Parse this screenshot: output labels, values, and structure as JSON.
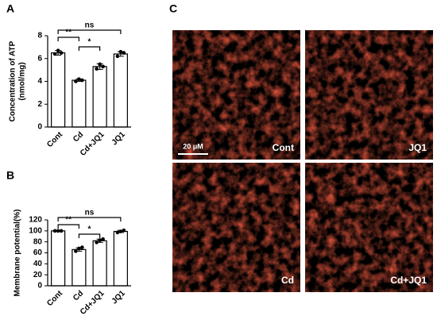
{
  "chart_data": [
    {
      "type": "bar",
      "panel_label": "A",
      "ylabel": [
        "Concentration of ATP",
        "(nmol/mg)"
      ],
      "categories": [
        "Cont",
        "Cd",
        "Cd+JQ1",
        "JQ1"
      ],
      "values": [
        6.5,
        4.1,
        5.3,
        6.4
      ],
      "errors": [
        0.2,
        0.1,
        0.25,
        0.2
      ],
      "points": [
        [
          6.4,
          6.7,
          6.5
        ],
        [
          4.0,
          4.2,
          4.1
        ],
        [
          5.1,
          5.5,
          5.3
        ],
        [
          6.2,
          6.6,
          6.5
        ]
      ],
      "color": "#000000",
      "ylim": [
        0,
        8
      ],
      "yticks": [
        0,
        2,
        4,
        6,
        8
      ],
      "annotations": [
        {
          "pair": [
            "Cont",
            "JQ1"
          ],
          "label": "ns"
        },
        {
          "pair": [
            "Cont",
            "Cd"
          ],
          "label": "**"
        },
        {
          "pair": [
            "Cd",
            "Cd+JQ1"
          ],
          "label": "*"
        }
      ]
    },
    {
      "type": "bar",
      "panel_label": "B",
      "ylabel": [
        "Membrane potential(%)"
      ],
      "categories": [
        "Cont",
        "Cd",
        "Cd+JQ1",
        "JQ1"
      ],
      "values": [
        100,
        66,
        82,
        99
      ],
      "errors": [
        0.5,
        3,
        3,
        2
      ],
      "points": [
        [
          100,
          100,
          100
        ],
        [
          63,
          68,
          70
        ],
        [
          79,
          83,
          85
        ],
        [
          97,
          99,
          101
        ]
      ],
      "color": "#000000",
      "ylim": [
        0,
        120
      ],
      "yticks": [
        0,
        20,
        40,
        60,
        80,
        100,
        120
      ],
      "annotations": [
        {
          "pair": [
            "Cont",
            "JQ1"
          ],
          "label": "ns"
        },
        {
          "pair": [
            "Cont",
            "Cd"
          ],
          "label": "**"
        },
        {
          "pair": [
            "Cd",
            "Cd+JQ1"
          ],
          "label": "*"
        }
      ]
    }
  ],
  "micrographs": {
    "panel_label": "C",
    "scale_bar": "20 μM",
    "labels": [
      "Cont",
      "JQ1",
      "Cd",
      "Cd+JQ1"
    ]
  }
}
